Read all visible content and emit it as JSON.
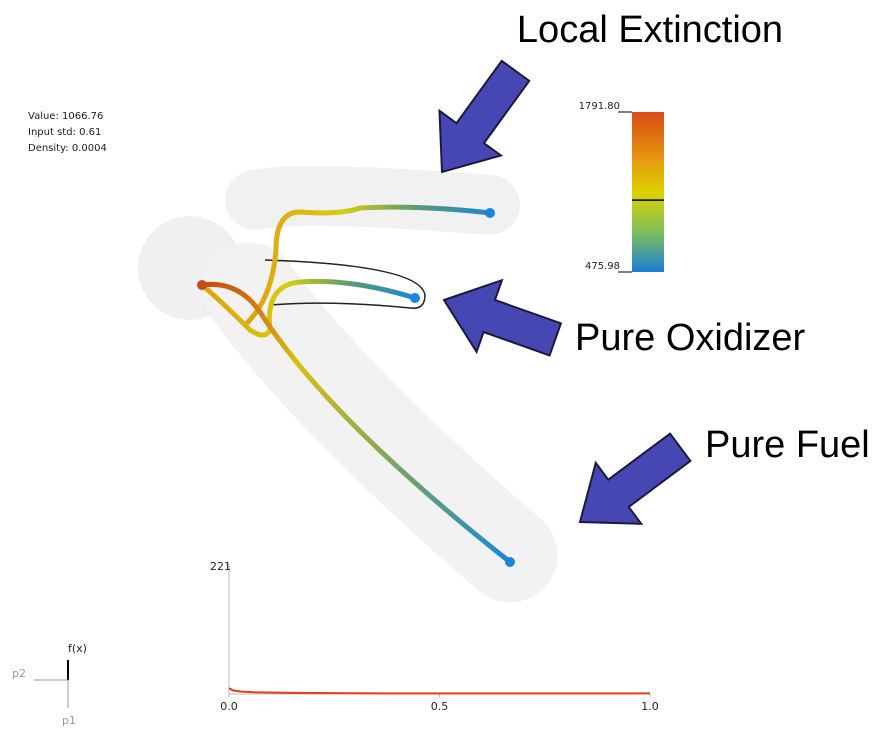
{
  "annotations": {
    "top": "Local Extinction",
    "middle": "Pure Oxidizer",
    "bottom": "Pure Fuel"
  },
  "info": {
    "value": "Value: 1066.76",
    "std": "Input std: 0.61",
    "density": "Density: 0.0004"
  },
  "colorbar": {
    "lim": [
      {
        "value": 475.98,
        "label": "475.98"
      },
      {
        "value": 1791.8,
        "label": "1791.80"
      }
    ],
    "marker": 1066.76
  },
  "histogram": {
    "ylim": [
      0,
      221
    ],
    "yticks": [
      221
    ],
    "xlim": [
      0,
      1
    ],
    "xticks": [
      {
        "value": 0,
        "label": "0.0"
      },
      {
        "value": 0.5,
        "label": "0.5"
      },
      {
        "value": 1,
        "label": "1.0"
      }
    ],
    "x": [
      0,
      0.01,
      0.03,
      0.06,
      0.15,
      0.4,
      1.0
    ],
    "values": [
      10,
      6,
      4,
      3,
      2,
      1,
      1
    ]
  },
  "axes_widget": {
    "y": "f(x)",
    "x": "p2",
    "z": "p1"
  }
}
